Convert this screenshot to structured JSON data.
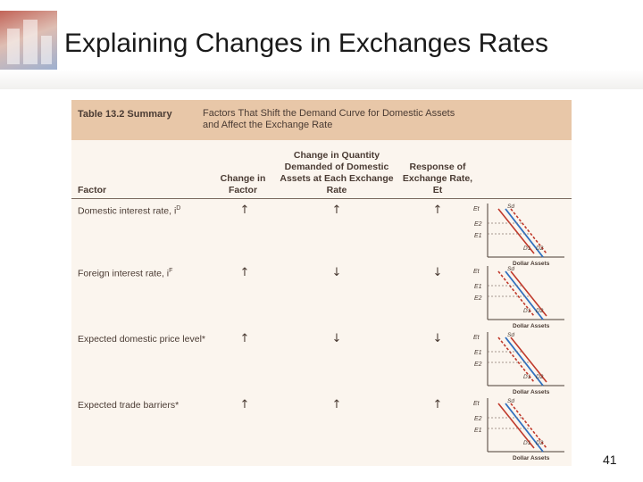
{
  "slide": {
    "title": "Explaining Changes in Exchanges Rates",
    "page_number": "41"
  },
  "table": {
    "label": "Table 13.2 Summary",
    "caption": "Factors That Shift the Demand Curve for Domestic Assets and Affect the Exchange Rate",
    "headers": {
      "factor": "Factor",
      "change": "Change in Factor",
      "quantity": "Change in Quantity Demanded of Domestic Assets at Each Exchange Rate",
      "response": "Response of Exchange Rate, Et"
    },
    "rows": [
      {
        "factor": "Domestic interest rate, i",
        "factor_sup": "D",
        "change": "↑",
        "quantity": "↑",
        "response": "↑",
        "graph": {
          "y_labels": [
            "Et",
            "E2",
            "E1"
          ],
          "curve_labels": [
            "Sd",
            "D1",
            "D2"
          ],
          "x_label": "Dollar Assets"
        }
      },
      {
        "factor": "Foreign interest rate, i",
        "factor_sup": "F",
        "change": "↑",
        "quantity": "↓",
        "response": "↓",
        "graph": {
          "y_labels": [
            "Et",
            "E1",
            "E2"
          ],
          "curve_labels": [
            "Sd",
            "D2",
            "D1"
          ],
          "x_label": "Dollar Assets"
        }
      },
      {
        "factor": "Expected domestic price level*",
        "factor_sup": "",
        "change": "↑",
        "quantity": "↓",
        "response": "↓",
        "graph": {
          "y_labels": [
            "Et",
            "E1",
            "E2"
          ],
          "curve_labels": [
            "Sd",
            "D2",
            "D1"
          ],
          "x_label": "Dollar Assets"
        }
      },
      {
        "factor": "Expected trade barriers*",
        "factor_sup": "",
        "change": "↑",
        "quantity": "↑",
        "response": "↑",
        "graph": {
          "y_labels": [
            "Et",
            "E2",
            "E1"
          ],
          "curve_labels": [
            "Sd",
            "D1",
            "D2"
          ],
          "x_label": "Dollar Assets"
        }
      }
    ]
  },
  "colors": {
    "banner": "#e8c7a8",
    "card": "#fbf5ee",
    "supply_curve": "#2f6fbf",
    "demand_curve": "#c0392b",
    "text": "#4a3b33"
  }
}
